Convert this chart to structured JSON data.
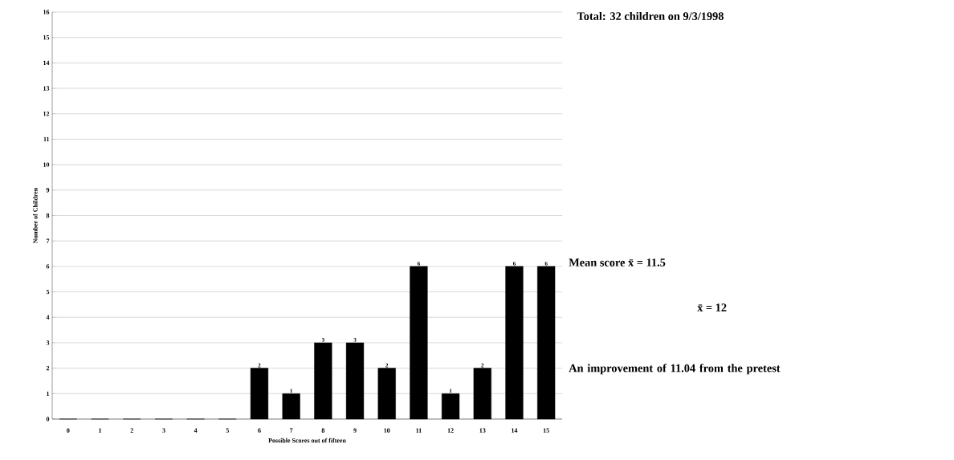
{
  "chart_data": {
    "type": "bar",
    "title": "Total: 32 children on 9/3/1998",
    "xlabel": "Possible Scores out of fifteen",
    "ylabel": "Number of Children",
    "categories": [
      "0",
      "1",
      "2",
      "3",
      "4",
      "5",
      "6",
      "7",
      "8",
      "9",
      "10",
      "11",
      "12",
      "13",
      "14",
      "15"
    ],
    "values": [
      0,
      0,
      0,
      0,
      0,
      0,
      2,
      1,
      3,
      3,
      2,
      6,
      1,
      2,
      6,
      6
    ],
    "value_labels": [
      null,
      null,
      null,
      null,
      null,
      null,
      "2",
      "1",
      "3",
      "3",
      "2",
      "6",
      "1",
      "2",
      "6",
      "6"
    ],
    "color": "#000000",
    "ylim": [
      0,
      16
    ],
    "yticks": [
      0,
      1,
      2,
      3,
      4,
      5,
      6,
      7,
      8,
      9,
      10,
      11,
      12,
      13,
      14,
      15,
      16
    ],
    "grid": "y",
    "annotations": [
      "Mean score x̄ = 11.5",
      "x̄ = 12",
      "An improvement of 11.04 from the pretest"
    ]
  }
}
